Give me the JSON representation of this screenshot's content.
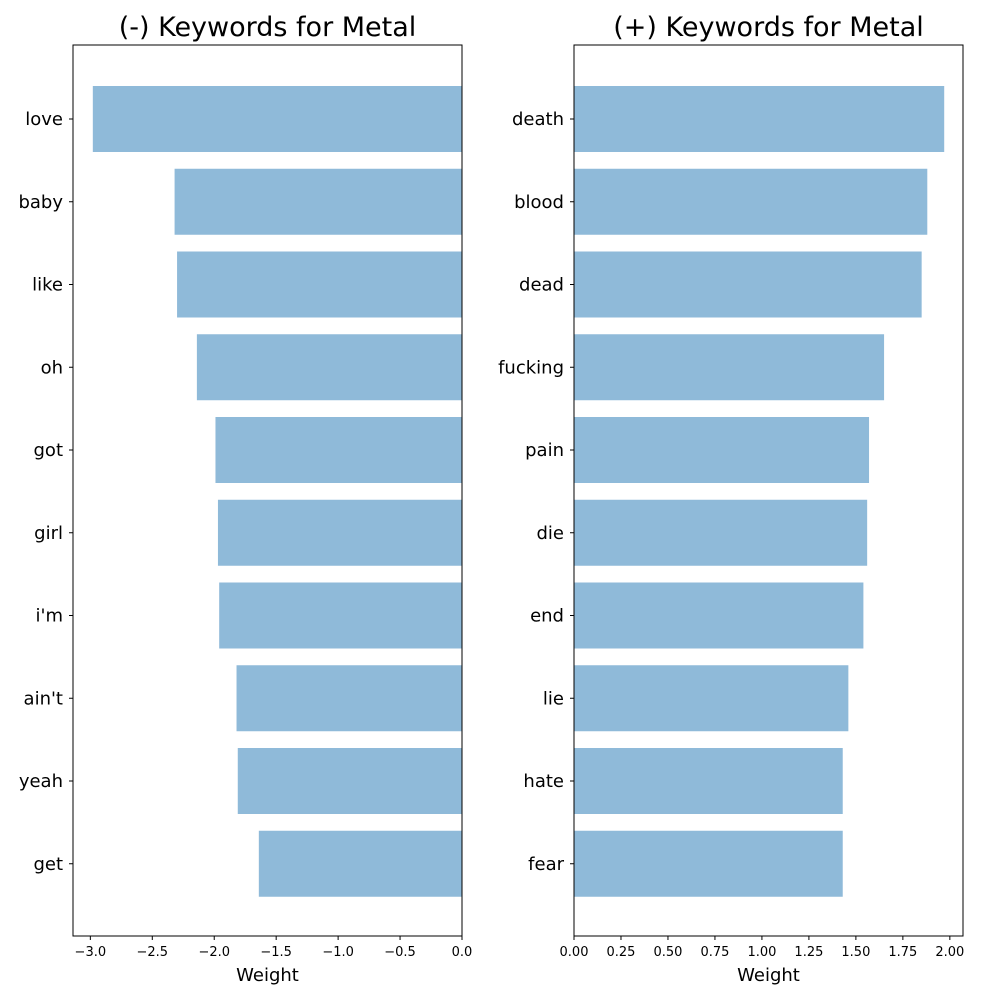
{
  "colors": {
    "bar": "#8fbad9",
    "axis": "#000000",
    "background": "#ffffff"
  },
  "chart_data": [
    {
      "type": "bar",
      "orientation": "horizontal",
      "title": "(-) Keywords for Metal",
      "xlabel": "Weight",
      "ylabel": "",
      "grid": false,
      "xlim": [
        -3.14,
        0
      ],
      "xticks": [
        -3.0,
        -2.5,
        -2.0,
        -1.5,
        -1.0,
        -0.5,
        0.0
      ],
      "xtick_labels": [
        "−3.0",
        "−2.5",
        "−2.0",
        "−1.5",
        "−1.0",
        "−0.5",
        "0.0"
      ],
      "categories": [
        "love",
        "baby",
        "like",
        "oh",
        "got",
        "girl",
        "i'm",
        "ain't",
        "yeah",
        "get"
      ],
      "values": [
        -2.98,
        -2.32,
        -2.3,
        -2.14,
        -1.99,
        -1.97,
        -1.96,
        -1.82,
        -1.81,
        -1.64
      ]
    },
    {
      "type": "bar",
      "orientation": "horizontal",
      "title": "(+) Keywords for Metal",
      "xlabel": "Weight",
      "ylabel": "",
      "grid": false,
      "xlim": [
        0,
        2.07
      ],
      "xticks": [
        0.0,
        0.25,
        0.5,
        0.75,
        1.0,
        1.25,
        1.5,
        1.75,
        2.0
      ],
      "xtick_labels": [
        "0.00",
        "0.25",
        "0.50",
        "0.75",
        "1.00",
        "1.25",
        "1.50",
        "1.75",
        "2.00"
      ],
      "categories": [
        "death",
        "blood",
        "dead",
        "fucking",
        "pain",
        "die",
        "end",
        "lie",
        "hate",
        "fear"
      ],
      "values": [
        1.97,
        1.88,
        1.85,
        1.65,
        1.57,
        1.56,
        1.54,
        1.46,
        1.43,
        1.43
      ]
    }
  ]
}
